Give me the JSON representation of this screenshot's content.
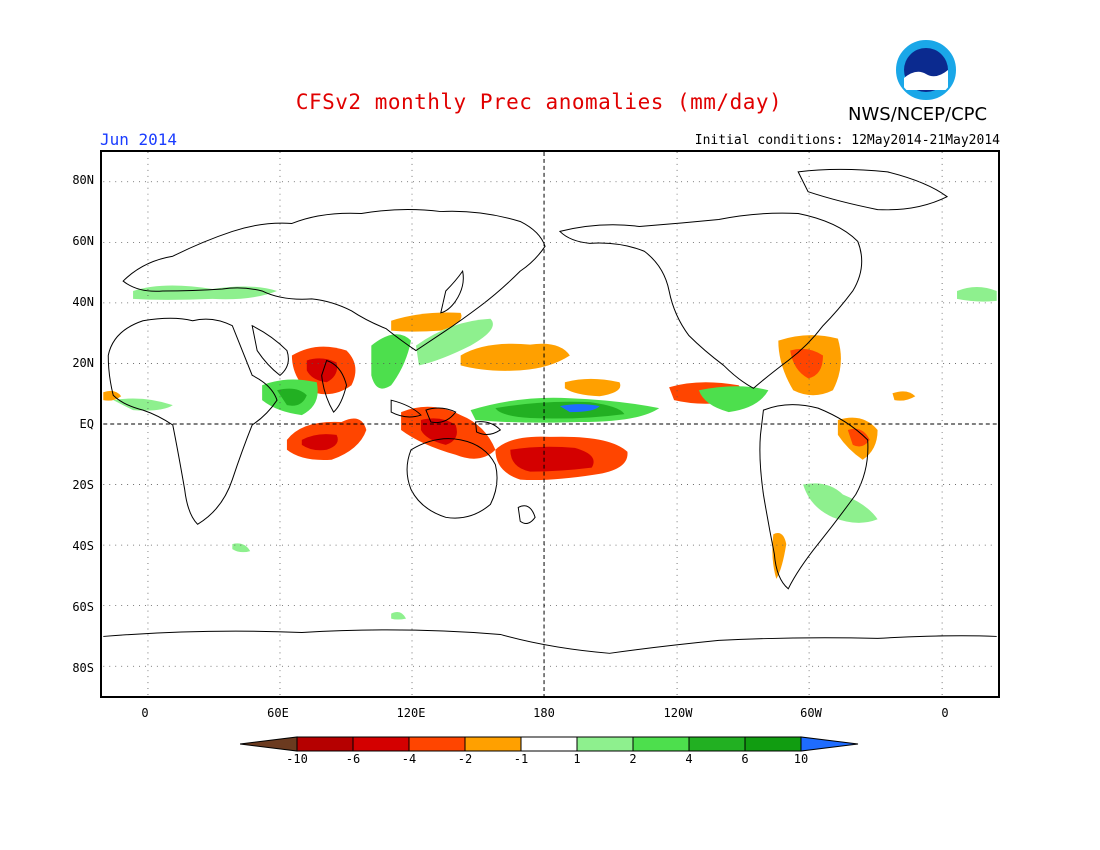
{
  "header": {
    "title": "CFSv2 monthly Prec anomalies (mm/day)",
    "agency": "NWS/NCEP/CPC",
    "month": "Jun 2014",
    "initial_conditions": "Initial conditions: 12May2014-21May2014",
    "logo_text": "NOAA"
  },
  "axes": {
    "lat_labels": [
      "80N",
      "60N",
      "40N",
      "20N",
      "EQ",
      "20S",
      "40S",
      "60S",
      "80S"
    ],
    "lon_labels": [
      "0",
      "60E",
      "120E",
      "180",
      "120W",
      "60W",
      "0"
    ]
  },
  "colorbar": {
    "labels": [
      "-10",
      "-6",
      "-4",
      "-2",
      "-1",
      "1",
      "2",
      "4",
      "6",
      "10"
    ],
    "colors": [
      "#6b3a1f",
      "#b50000",
      "#d40000",
      "#ff4500",
      "#ffa000",
      "#ffffff",
      "#8ef08e",
      "#4ddf4d",
      "#22b022",
      "#119d11",
      "#1e6cff"
    ]
  },
  "colors": {
    "title": "#e00000",
    "month": "#1a3cff"
  }
}
